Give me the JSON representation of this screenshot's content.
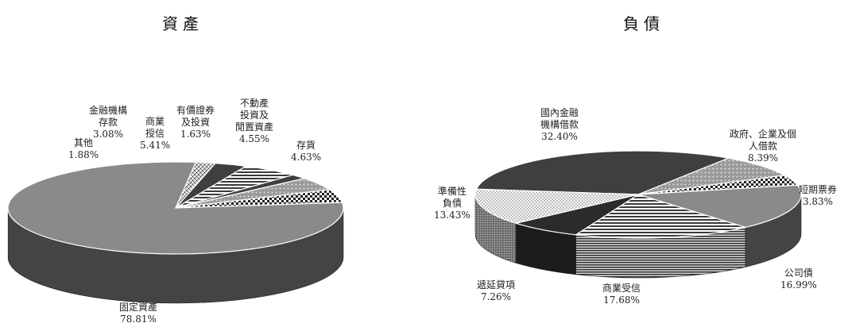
{
  "colors": {
    "dark": "#3f3f3f",
    "darker": "#2b2b2b",
    "mid": "#8a8a8a",
    "light": "#bcbcbc",
    "bg": "#ffffff"
  },
  "chart_data": [
    {
      "type": "pie",
      "style": "3d",
      "title": "資產",
      "slices": [
        {
          "name": "固定資產",
          "value": 78.81,
          "label": "78.81%",
          "pattern": "mid"
        },
        {
          "name": "其他",
          "value": 1.88,
          "label": "1.88%",
          "pattern": "cross"
        },
        {
          "name": "金融機構\n存款",
          "value": 3.08,
          "label": "3.08%",
          "pattern": "dark"
        },
        {
          "name": "商業\n授信",
          "value": 5.41,
          "label": "5.41%",
          "pattern": "hstripe"
        },
        {
          "name": "有價證券\n及投資",
          "value": 1.63,
          "label": "1.63%",
          "pattern": "dark"
        },
        {
          "name": "不動產\n投資及\n閒置資產",
          "value": 4.55,
          "label": "4.55%",
          "pattern": "dots"
        },
        {
          "name": "存貨",
          "value": 4.63,
          "label": "4.63%",
          "pattern": "checker"
        }
      ]
    },
    {
      "type": "pie",
      "style": "3d",
      "title": "負債",
      "slices": [
        {
          "name": "國內金融\n機構借款",
          "value": 32.4,
          "label": "32.40%",
          "pattern": "dark"
        },
        {
          "name": "政府、企業及個\n人借款",
          "value": 8.39,
          "label": "8.39%",
          "pattern": "dots"
        },
        {
          "name": "短期票券",
          "value": 3.83,
          "label": "3.83%",
          "pattern": "checker"
        },
        {
          "name": "公司債",
          "value": 16.99,
          "label": "16.99%",
          "pattern": "mid"
        },
        {
          "name": "商業受信",
          "value": 17.68,
          "label": "17.68%",
          "pattern": "hstripe"
        },
        {
          "name": "遞延貸項",
          "value": 7.26,
          "label": "7.26%",
          "pattern": "darker"
        },
        {
          "name": "準備性\n負債",
          "value": 13.43,
          "label": "13.43%",
          "pattern": "dense"
        }
      ]
    }
  ]
}
